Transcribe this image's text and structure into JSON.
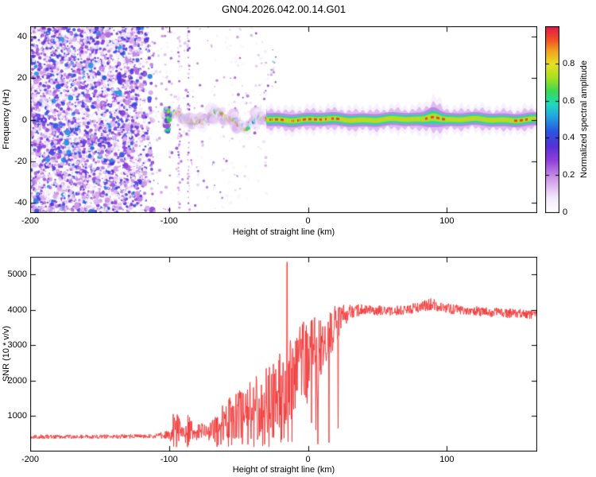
{
  "title": "GN04.2026.042.00.14.G01",
  "colors": {
    "frame": "#000000",
    "background": "#ffffff",
    "snr_line": "#f03232"
  },
  "chart_data": [
    {
      "type": "heatmap",
      "name": "doppler-spectrogram",
      "xlabel": "Height of straight line (km)",
      "ylabel": "Frequency (Hz)",
      "xlim": [
        -200,
        165
      ],
      "ylim": [
        -45,
        45
      ],
      "x_ticks": [
        -200,
        -100,
        0,
        100
      ],
      "y_ticks": [
        -40,
        -20,
        0,
        20,
        40
      ],
      "colorbar": {
        "label": "Normalized spectral amplitude",
        "ticks": [
          0,
          0.2,
          0.4,
          0.6,
          0.8
        ],
        "min": 0,
        "max": 1,
        "colormap_stops": [
          [
            0.0,
            "#ffffff"
          ],
          [
            0.08,
            "#f3eafb"
          ],
          [
            0.18,
            "#cf9ae8"
          ],
          [
            0.28,
            "#9040d8"
          ],
          [
            0.36,
            "#5530d8"
          ],
          [
            0.44,
            "#2858e0"
          ],
          [
            0.52,
            "#20a8e0"
          ],
          [
            0.58,
            "#20d8c0"
          ],
          [
            0.65,
            "#38d858"
          ],
          [
            0.72,
            "#a0e020"
          ],
          [
            0.8,
            "#e8e020"
          ],
          [
            0.87,
            "#f0a020"
          ],
          [
            0.93,
            "#f05020"
          ],
          [
            1.0,
            "#e01850"
          ]
        ]
      },
      "regions": {
        "noise_region_km": [
          -200,
          -112
        ],
        "sparse_noise_km": [
          -112,
          -30
        ],
        "vertical_streaks_km": [
          -93,
          -86
        ],
        "signal_onset_km": -104,
        "signal_end_km": 165,
        "wander_band_km": [
          -104,
          -30
        ],
        "narrow_band_km": [
          -30,
          165
        ],
        "red_core_segments_km": [
          [
            -28,
            -18
          ],
          [
            -14,
            24
          ],
          [
            84,
            99
          ],
          [
            148,
            160
          ]
        ],
        "bulge_km": [
          84,
          97
        ],
        "signal_center_frequency_hz": 0,
        "wander_amplitude_hz": 4,
        "halo_halfwidth_hz": 6.4
      }
    },
    {
      "type": "line",
      "name": "snr-profile",
      "xlabel": "Height of straight line (km)",
      "ylabel": "SNR (10 * v/v)",
      "xlim": [
        -200,
        165
      ],
      "ylim": [
        0,
        5500
      ],
      "x_ticks": [
        -200,
        -100,
        0,
        100
      ],
      "y_ticks": [
        1000,
        2000,
        3000,
        4000,
        5000
      ],
      "line_color": "#f03232",
      "profile": [
        [
          -200,
          420,
          70
        ],
        [
          -150,
          420,
          70
        ],
        [
          -112,
          430,
          75
        ],
        [
          -100,
          480,
          140
        ],
        [
          -96,
          750,
          800
        ],
        [
          -93,
          620,
          450
        ],
        [
          -90,
          480,
          160
        ],
        [
          -86,
          640,
          600
        ],
        [
          -82,
          520,
          220
        ],
        [
          -78,
          580,
          380
        ],
        [
          -72,
          520,
          260
        ],
        [
          -66,
          700,
          520
        ],
        [
          -60,
          820,
          700
        ],
        [
          -54,
          920,
          800
        ],
        [
          -48,
          1020,
          900
        ],
        [
          -42,
          1120,
          1000
        ],
        [
          -36,
          1250,
          1100
        ],
        [
          -30,
          1400,
          1150
        ],
        [
          -24,
          1550,
          1250
        ],
        [
          -18,
          1750,
          1350
        ],
        [
          -12,
          2050,
          1450
        ],
        [
          -8,
          2450,
          1500
        ],
        [
          -4,
          2650,
          1350
        ],
        [
          0,
          2550,
          1250
        ],
        [
          4,
          2850,
          1150
        ],
        [
          8,
          2650,
          1300
        ],
        [
          12,
          3100,
          950
        ],
        [
          16,
          3350,
          800
        ],
        [
          20,
          3600,
          620
        ],
        [
          26,
          3850,
          360
        ],
        [
          32,
          3950,
          230
        ],
        [
          40,
          4010,
          180
        ],
        [
          50,
          3990,
          170
        ],
        [
          60,
          3960,
          170
        ],
        [
          70,
          4010,
          170
        ],
        [
          80,
          4060,
          180
        ],
        [
          88,
          4160,
          200
        ],
        [
          95,
          4110,
          190
        ],
        [
          105,
          4010,
          170
        ],
        [
          115,
          3985,
          160
        ],
        [
          125,
          3955,
          160
        ],
        [
          135,
          3925,
          160
        ],
        [
          145,
          3905,
          160
        ],
        [
          155,
          3885,
          160
        ],
        [
          165,
          3855,
          170
        ]
      ],
      "spike": {
        "x": -15,
        "peak": 5350
      }
    }
  ]
}
